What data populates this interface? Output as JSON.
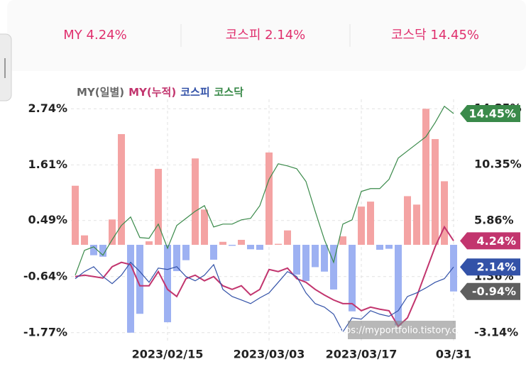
{
  "summary": [
    "MY 4.24%",
    "코스피 2.14%",
    "코스닥 14.45%"
  ],
  "chart_data": {
    "type": "bar_line",
    "categories": [
      null,
      null,
      null,
      null,
      null,
      null,
      null,
      null,
      null,
      null,
      "2023/02/15",
      null,
      null,
      null,
      null,
      null,
      null,
      null,
      null,
      null,
      null,
      "2023/03/03",
      null,
      null,
      null,
      null,
      null,
      null,
      null,
      null,
      null,
      "2023/03/17",
      null,
      null,
      null,
      null,
      null,
      null,
      null,
      null,
      null,
      "03/31"
    ],
    "ylim": [
      -1.93,
      2.93
    ],
    "yticks": [
      {
        "value": 2.74,
        "label": "2.74%"
      },
      {
        "value": 1.61,
        "label": "1.61%"
      },
      {
        "value": 0.49,
        "label": "0.49%"
      },
      {
        "value": -0.64,
        "label": "-0.64%"
      },
      {
        "value": -1.77,
        "label": "-1.77%"
      }
    ],
    "y2lim": [
      -3.77,
      15.59
    ],
    "y2ticks": [
      {
        "value": 14.85,
        "label": "14.85%"
      },
      {
        "value": 10.35,
        "label": "10.35%"
      },
      {
        "value": 5.86,
        "label": "5.86%"
      },
      {
        "value": 1.36,
        "label": "1.36%"
      },
      {
        "value": -3.14,
        "label": "-3.14%"
      }
    ],
    "grid": true,
    "watermark": "https://myportfolio.tistory.com",
    "series": [
      {
        "name": "MY(일별)",
        "kind": "bar",
        "axis": "y",
        "color": "#666666",
        "positive_color": "#f4a3a3",
        "negative_color": "#9db1f2",
        "tag_color": "#5f5f5f",
        "values": [
          1.19,
          0.19,
          -0.21,
          -0.24,
          0.51,
          2.23,
          -1.77,
          -1.39,
          0.07,
          1.53,
          -1.56,
          -0.53,
          -0.31,
          1.74,
          0.71,
          -0.3,
          0.06,
          -0.02,
          0.1,
          -0.09,
          -0.1,
          1.86,
          0.02,
          0.29,
          -0.6,
          -0.73,
          -0.45,
          -0.54,
          -0.9,
          0.17,
          -1.34,
          0.77,
          0.87,
          -0.1,
          -0.08,
          -1.62,
          0.98,
          0.81,
          2.74,
          2.13,
          1.28,
          -0.94
        ],
        "value_labels": [
          null,
          null,
          null,
          null,
          null,
          null,
          null,
          null,
          null,
          null,
          null,
          null,
          null,
          null,
          null,
          null,
          null,
          null,
          null,
          null,
          null,
          null,
          null,
          null,
          null,
          null,
          null,
          null,
          null,
          null,
          null,
          null,
          null,
          null,
          null,
          null,
          null,
          null,
          null,
          null,
          null,
          "-0.94%"
        ]
      },
      {
        "name": "MY(누적)",
        "kind": "line",
        "axis": "y2",
        "color": "#c2356e",
        "values": [
          1.37,
          1.48,
          1.37,
          1.25,
          2.16,
          2.51,
          2.33,
          0.63,
          0.63,
          1.77,
          0.34,
          -0.23,
          1.2,
          1.48,
          1.03,
          1.37,
          0.63,
          0.34,
          0.63,
          -0.11,
          0.34,
          1.94,
          1.77,
          2.05,
          1.2,
          0.91,
          0.34,
          -0.11,
          -0.51,
          -0.8,
          -0.8,
          -1.37,
          -1.08,
          -1.25,
          -1.37,
          -2.62,
          -1.94,
          -0.23,
          1.77,
          3.76,
          5.35,
          4.24
        ],
        "value_labels": [
          null,
          null,
          null,
          null,
          null,
          null,
          null,
          null,
          null,
          null,
          null,
          null,
          null,
          null,
          null,
          null,
          null,
          null,
          null,
          null,
          null,
          null,
          null,
          null,
          null,
          null,
          null,
          null,
          null,
          null,
          null,
          null,
          null,
          null,
          null,
          null,
          null,
          null,
          null,
          null,
          null,
          "4.24%"
        ]
      },
      {
        "name": "코스피",
        "kind": "line",
        "axis": "y2",
        "color": "#3352a8",
        "values": [
          1.2,
          1.77,
          2.16,
          1.37,
          0.8,
          1.48,
          2.51,
          1.77,
          0.91,
          2.05,
          1.94,
          2.16,
          1.37,
          1.03,
          1.48,
          2.33,
          0.34,
          -0.23,
          -0.51,
          -0.8,
          -0.34,
          0.06,
          0.91,
          1.77,
          1.37,
          0.06,
          -0.8,
          -1.08,
          -1.65,
          -3.07,
          -1.94,
          -2.05,
          -1.37,
          -1.65,
          -1.82,
          -1.37,
          -0.23,
          0.06,
          0.46,
          0.91,
          1.2,
          2.14
        ],
        "value_labels": [
          null,
          null,
          null,
          null,
          null,
          null,
          null,
          null,
          null,
          null,
          null,
          null,
          null,
          null,
          null,
          null,
          null,
          null,
          null,
          null,
          null,
          null,
          null,
          null,
          null,
          null,
          null,
          null,
          null,
          null,
          null,
          null,
          null,
          null,
          null,
          null,
          null,
          null,
          null,
          null,
          null,
          "2.14%"
        ]
      },
      {
        "name": "코스닥",
        "kind": "line",
        "axis": "y2",
        "color": "#3a8a4a",
        "values": [
          1.48,
          3.47,
          3.76,
          3.08,
          4.33,
          5.47,
          6.15,
          4.5,
          4.44,
          5.58,
          3.64,
          5.47,
          6.04,
          6.61,
          7.06,
          5.35,
          5.58,
          5.58,
          5.92,
          6.04,
          7.06,
          9.17,
          10.42,
          10.25,
          10.02,
          9.0,
          6.61,
          4.33,
          2.51,
          5.58,
          5.92,
          8.2,
          8.43,
          8.43,
          9.17,
          10.88,
          11.45,
          12.02,
          12.59,
          13.72,
          15.03,
          14.45
        ],
        "value_labels": [
          null,
          null,
          null,
          null,
          null,
          null,
          null,
          null,
          null,
          null,
          null,
          null,
          null,
          null,
          null,
          null,
          null,
          null,
          null,
          null,
          null,
          null,
          null,
          null,
          null,
          null,
          null,
          null,
          null,
          null,
          null,
          null,
          null,
          null,
          null,
          null,
          null,
          null,
          null,
          null,
          null,
          "14.45%"
        ]
      }
    ]
  }
}
